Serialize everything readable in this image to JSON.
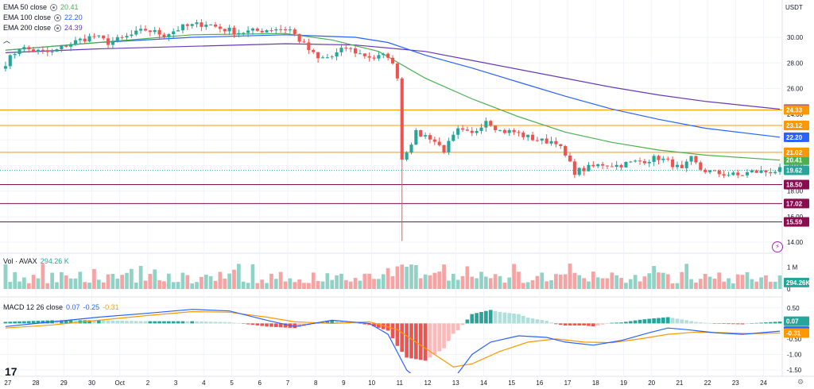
{
  "header": {
    "currency": "USDT",
    "collapse_icon": "chevron-up-icon"
  },
  "legends": {
    "ema50": {
      "label": "EMA 50 close",
      "value": "20.41",
      "color": "#4caf50"
    },
    "ema100": {
      "label": "EMA 100 close",
      "value": "22.20",
      "color": "#2962ff"
    },
    "ema200": {
      "label": "EMA 200 close",
      "value": "24.39",
      "color": "#673ab7"
    },
    "volume": {
      "label": "Vol · AVAX",
      "value": "294.26 K",
      "color": "#26a69a"
    },
    "macd": {
      "label": "MACD 12 26 close",
      "v1": "0.07",
      "v2": "-0.25",
      "v3": "-0.31",
      "c1": "#2962ff",
      "c2": "#2962ff",
      "c3": "#ff9800"
    }
  },
  "colors": {
    "up": "#26a69a",
    "down": "#ef5350",
    "vol_up": "#8fd3c6",
    "vol_down": "#f5a3a3",
    "hist_up_strong": "#26a69a",
    "hist_up_weak": "#b2dfdb",
    "hist_down_strong": "#ef5350",
    "hist_down_weak": "#f8bbbb",
    "level_orange": "#ff9800",
    "level_dark": "#880e4f",
    "grid": "#f0f3fa",
    "axis_text": "#131722",
    "current": "#26a69a"
  },
  "chart_data": {
    "type": "candlestick",
    "price_axis": {
      "ymin": 13.2,
      "ymax": 31.8,
      "ticks": [
        14,
        16,
        18,
        20,
        22,
        24,
        26,
        28,
        30
      ],
      "tick_labels": [
        "14.00",
        "16.00",
        "18.00",
        "20.00",
        "22.00",
        "24.00",
        "26.00",
        "28.00",
        "30.00"
      ]
    },
    "x_axis": {
      "labels": [
        {
          "t": 0.5,
          "label": "27"
        },
        {
          "t": 6.5,
          "label": "28"
        },
        {
          "t": 12.5,
          "label": "29"
        },
        {
          "t": 18.5,
          "label": "30"
        },
        {
          "t": 24.5,
          "label": "Oct"
        },
        {
          "t": 30.5,
          "label": "2"
        },
        {
          "t": 36.5,
          "label": "3"
        },
        {
          "t": 42.5,
          "label": "4"
        },
        {
          "t": 48.5,
          "label": "5"
        },
        {
          "t": 54.5,
          "label": "6"
        },
        {
          "t": 60.5,
          "label": "7"
        },
        {
          "t": 66.5,
          "label": "8"
        },
        {
          "t": 72.5,
          "label": "9"
        },
        {
          "t": 78.5,
          "label": "10"
        },
        {
          "t": 84.5,
          "label": "11"
        },
        {
          "t": 90.5,
          "label": "12"
        },
        {
          "t": 96.5,
          "label": "13"
        },
        {
          "t": 102.5,
          "label": "14"
        },
        {
          "t": 108.5,
          "label": "15"
        },
        {
          "t": 114.5,
          "label": "16"
        },
        {
          "t": 120.5,
          "label": "17"
        },
        {
          "t": 126.5,
          "label": "18"
        },
        {
          "t": 132.5,
          "label": "19"
        },
        {
          "t": 138.5,
          "label": "20"
        },
        {
          "t": 144.5,
          "label": "21"
        },
        {
          "t": 150.5,
          "label": "22"
        },
        {
          "t": 156.5,
          "label": "23"
        },
        {
          "t": 162.5,
          "label": "24"
        }
      ]
    },
    "price_path": [
      [
        0,
        28.0
      ],
      [
        3,
        29.2
      ],
      [
        7,
        28.9
      ],
      [
        10,
        28.8
      ],
      [
        13,
        29.4
      ],
      [
        16,
        29.8
      ],
      [
        19,
        30.1
      ],
      [
        22,
        29.6
      ],
      [
        25,
        29.9
      ],
      [
        30,
        30.6
      ],
      [
        34,
        30.2
      ],
      [
        38,
        30.8
      ],
      [
        43,
        31.1
      ],
      [
        46,
        30.7
      ],
      [
        50,
        30.4
      ],
      [
        54,
        30.5
      ],
      [
        58,
        30.7
      ],
      [
        61,
        30.6
      ],
      [
        64,
        29.4
      ],
      [
        67,
        28.3
      ],
      [
        70,
        28.5
      ],
      [
        73,
        29.2
      ],
      [
        76,
        28.7
      ],
      [
        79,
        28.4
      ],
      [
        82,
        28.6
      ],
      [
        84,
        27.0
      ],
      [
        85,
        20.5
      ],
      [
        88,
        22.5
      ],
      [
        91,
        22.2
      ],
      [
        94,
        21.2
      ],
      [
        97,
        22.7
      ],
      [
        100,
        22.4
      ],
      [
        103,
        23.6
      ],
      [
        106,
        22.7
      ],
      [
        109,
        22.6
      ],
      [
        112,
        22.2
      ],
      [
        115,
        21.9
      ],
      [
        118,
        21.9
      ],
      [
        120,
        20.7
      ],
      [
        122,
        19.5
      ],
      [
        125,
        19.8
      ],
      [
        128,
        20.1
      ],
      [
        131,
        20.0
      ],
      [
        134,
        20.2
      ],
      [
        137,
        20.4
      ],
      [
        140,
        20.6
      ],
      [
        143,
        20.1
      ],
      [
        145,
        19.6
      ],
      [
        147,
        20.5
      ],
      [
        149,
        19.7
      ],
      [
        152,
        19.4
      ],
      [
        155,
        19.3
      ],
      [
        157,
        19.2
      ],
      [
        160,
        19.5
      ],
      [
        163,
        19.5
      ],
      [
        166,
        19.62
      ]
    ],
    "candles_count": 167,
    "level_lines": [
      {
        "price": 24.33,
        "label": "24.33",
        "color": "#ff9800"
      },
      {
        "price": 23.12,
        "label": "23.12",
        "color": "#ff9800"
      },
      {
        "price": 21.02,
        "label": "21.02",
        "color": "#ff9800"
      },
      {
        "price": 18.5,
        "label": "18.50",
        "color": "#880e4f"
      },
      {
        "price": 17.02,
        "label": "17.02",
        "color": "#880e4f"
      },
      {
        "price": 15.59,
        "label": "15.59",
        "color": "#880e4f"
      }
    ],
    "current_price": {
      "price": 19.62,
      "label": "19.62"
    },
    "ema_tags": [
      {
        "price": 24.39,
        "label": "24.39",
        "color": "#673ab7"
      },
      {
        "price": 22.2,
        "label": "22.20",
        "color": "#2962ff"
      },
      {
        "price": 20.41,
        "label": "20.41",
        "color": "#4caf50"
      }
    ],
    "ema50": [
      [
        0,
        29.0
      ],
      [
        20,
        29.6
      ],
      [
        40,
        30.2
      ],
      [
        60,
        30.3
      ],
      [
        70,
        29.8
      ],
      [
        80,
        28.9
      ],
      [
        90,
        26.8
      ],
      [
        100,
        25.2
      ],
      [
        110,
        23.8
      ],
      [
        120,
        22.6
      ],
      [
        130,
        21.8
      ],
      [
        140,
        21.2
      ],
      [
        150,
        20.8
      ],
      [
        166,
        20.41
      ]
    ],
    "ema100": [
      [
        0,
        29.0
      ],
      [
        20,
        29.6
      ],
      [
        40,
        30.0
      ],
      [
        60,
        30.2
      ],
      [
        75,
        30.0
      ],
      [
        82,
        29.6
      ],
      [
        90,
        28.6
      ],
      [
        100,
        27.6
      ],
      [
        110,
        26.5
      ],
      [
        120,
        25.4
      ],
      [
        130,
        24.4
      ],
      [
        140,
        23.6
      ],
      [
        150,
        22.9
      ],
      [
        166,
        22.2
      ]
    ],
    "ema200": [
      [
        0,
        28.8
      ],
      [
        20,
        29.1
      ],
      [
        40,
        29.3
      ],
      [
        60,
        29.5
      ],
      [
        75,
        29.4
      ],
      [
        90,
        28.9
      ],
      [
        100,
        28.2
      ],
      [
        110,
        27.5
      ],
      [
        120,
        26.8
      ],
      [
        130,
        26.1
      ],
      [
        140,
        25.5
      ],
      [
        150,
        25.0
      ],
      [
        166,
        24.39
      ]
    ],
    "volume_axis": {
      "vmin": 0,
      "vmax": 1.6,
      "ticks": [
        0.0,
        1.0
      ],
      "tick_labels": [
        "0",
        "1 M"
      ],
      "current_label": "294.26K"
    },
    "macd_axis": {
      "ymin": -1.6,
      "ymax": 0.75,
      "ticks": [
        0.5,
        0.0,
        -0.5,
        -1.0,
        -1.5
      ],
      "tick_labels": [
        "0.50",
        "0.00",
        "-0.50",
        "-1.00",
        "-1.50"
      ],
      "tags": [
        {
          "value": 0.07,
          "label": "0.07",
          "color": "#26a69a"
        },
        {
          "value": -0.25,
          "label": "-0.25",
          "color": "#2962ff"
        },
        {
          "value": -0.31,
          "label": "-0.31",
          "color": "#ff9800"
        }
      ]
    },
    "macd_line": [
      [
        0,
        -0.1
      ],
      [
        10,
        0.05
      ],
      [
        20,
        0.2
      ],
      [
        30,
        0.32
      ],
      [
        40,
        0.45
      ],
      [
        48,
        0.4
      ],
      [
        56,
        0.1
      ],
      [
        62,
        -0.1
      ],
      [
        70,
        0.1
      ],
      [
        78,
        0.0
      ],
      [
        82,
        -0.35
      ],
      [
        86,
        -1.5
      ],
      [
        90,
        -2.0
      ],
      [
        94,
        -2.0
      ],
      [
        97,
        -1.6
      ],
      [
        100,
        -1.0
      ],
      [
        104,
        -0.6
      ],
      [
        110,
        -0.4
      ],
      [
        116,
        -0.45
      ],
      [
        120,
        -0.6
      ],
      [
        126,
        -0.7
      ],
      [
        132,
        -0.55
      ],
      [
        138,
        -0.3
      ],
      [
        142,
        -0.15
      ],
      [
        146,
        -0.2
      ],
      [
        152,
        -0.3
      ],
      [
        158,
        -0.35
      ],
      [
        166,
        -0.25
      ]
    ],
    "signal_line": [
      [
        0,
        -0.15
      ],
      [
        10,
        -0.05
      ],
      [
        20,
        0.1
      ],
      [
        30,
        0.25
      ],
      [
        40,
        0.38
      ],
      [
        48,
        0.36
      ],
      [
        56,
        0.2
      ],
      [
        62,
        0.05
      ],
      [
        70,
        0.0
      ],
      [
        78,
        0.05
      ],
      [
        84,
        -0.2
      ],
      [
        90,
        -0.8
      ],
      [
        96,
        -1.4
      ],
      [
        100,
        -1.3
      ],
      [
        106,
        -0.9
      ],
      [
        112,
        -0.6
      ],
      [
        118,
        -0.5
      ],
      [
        124,
        -0.6
      ],
      [
        130,
        -0.62
      ],
      [
        136,
        -0.5
      ],
      [
        142,
        -0.35
      ],
      [
        148,
        -0.28
      ],
      [
        154,
        -0.3
      ],
      [
        160,
        -0.33
      ],
      [
        166,
        -0.31
      ]
    ]
  }
}
